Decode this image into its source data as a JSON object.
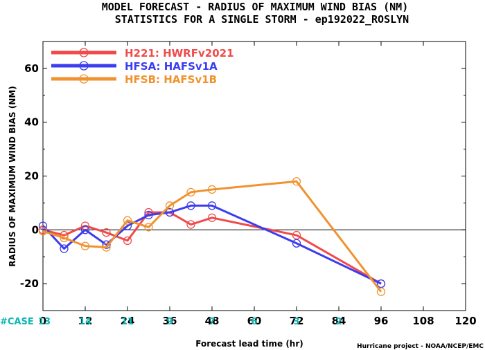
{
  "chart_data": {
    "type": "line",
    "title": "MODEL FORECAST - RADIUS OF MAXIMUM WIND BIAS (NM)",
    "subtitle": "STATISTICS FOR A SINGLE STORM - ep192022_ROSLYN",
    "xlabel": "Forecast lead time (hr)",
    "ylabel": "RADIUS OF MAXIMUM WIND BIAS (NM)",
    "xlim": [
      0,
      120
    ],
    "ylim": [
      -30,
      70
    ],
    "xticks": [
      "0",
      "12",
      "24",
      "36",
      "48",
      "60",
      "72",
      "84",
      "96",
      "108",
      "120"
    ],
    "yticks": [
      "-20",
      "0",
      "20",
      "40",
      "60"
    ],
    "zero_line": true,
    "legend_position": "top-left",
    "case_label": "#CASE",
    "case_counts": [
      {
        "x": 0,
        "label": "13"
      },
      {
        "x": 12,
        "label": "14"
      },
      {
        "x": 24,
        "label": "11"
      },
      {
        "x": 36,
        "label": "9"
      },
      {
        "x": 48,
        "label": "7"
      },
      {
        "x": 60,
        "label": "6"
      },
      {
        "x": 72,
        "label": "3"
      },
      {
        "x": 84,
        "label": "2"
      }
    ],
    "case_color": "#10b5b5",
    "series": [
      {
        "name": "H221: HWRFv2021",
        "color": "#f04a4a",
        "x": [
          0,
          6,
          12,
          18,
          24,
          30,
          36,
          42,
          48,
          72,
          96
        ],
        "y": [
          0,
          -2,
          1.5,
          -1,
          -4,
          6.5,
          6.5,
          2,
          4.5,
          -2,
          -20
        ]
      },
      {
        "name": "HFSA: HAFSv1A",
        "color": "#3c3cf0",
        "x": [
          0,
          6,
          12,
          18,
          24,
          30,
          36,
          42,
          48,
          72,
          96
        ],
        "y": [
          1.5,
          -7,
          0,
          -5.5,
          1.5,
          5.5,
          6.5,
          9,
          9,
          -5,
          -20
        ]
      },
      {
        "name": "HFSB: HAFSv1B",
        "color": "#f0922e",
        "x": [
          0,
          6,
          12,
          18,
          24,
          30,
          36,
          42,
          48,
          72,
          96
        ],
        "y": [
          -0.5,
          -3,
          -6,
          -6.5,
          3.5,
          1,
          9,
          14,
          15,
          18,
          -23
        ]
      }
    ]
  },
  "credit": "Hurricane project - NOAA/NCEP/EMC"
}
